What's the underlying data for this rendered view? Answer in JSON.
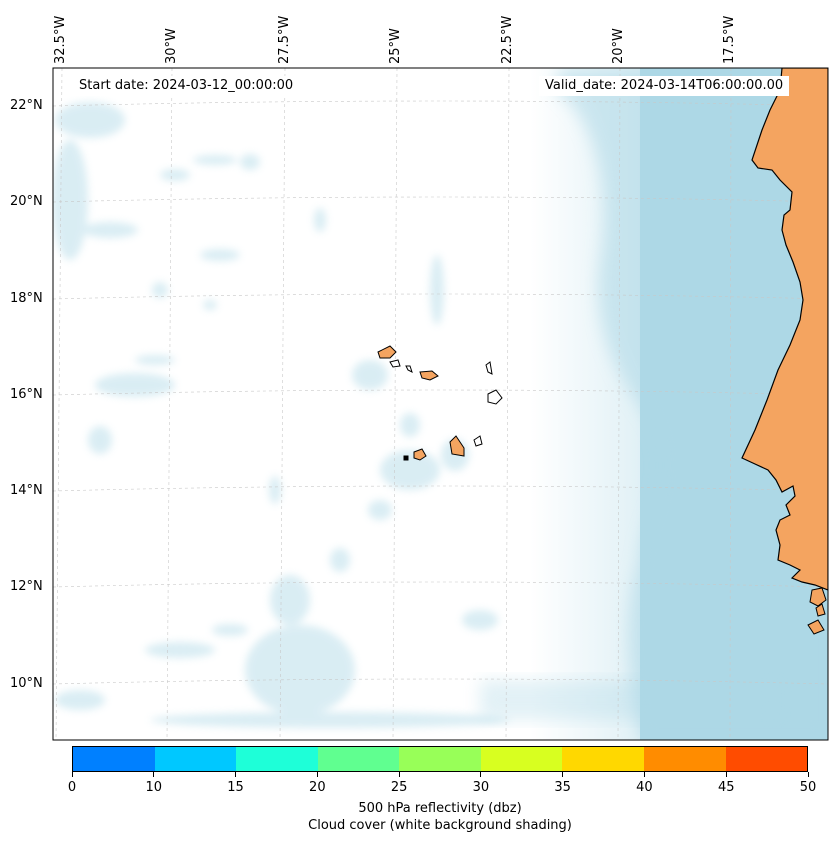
{
  "map": {
    "start_date": "Start date: 2024-03-12_00:00:00",
    "valid_date": "Valid_date: 2024-03-14T06:00:00.00",
    "lon_labels": [
      "32.5°W",
      "30°W",
      "27.5°W",
      "25°W",
      "22.5°W",
      "20°W",
      "17.5°W"
    ],
    "lat_labels": [
      "22°N",
      "20°N",
      "18°N",
      "16°N",
      "14°N",
      "12°N",
      "10°N"
    ],
    "land_color": "#f4a460",
    "cloud_color": "#add8e6",
    "ocean_color": "#ffffff"
  },
  "colorbar": {
    "ticks": [
      "0",
      "10",
      "15",
      "20",
      "25",
      "30",
      "35",
      "40",
      "45",
      "50"
    ],
    "colors": [
      "#0080ff",
      "#00c8ff",
      "#1effd8",
      "#60ff90",
      "#98ff58",
      "#d8ff20",
      "#ffd800",
      "#ff8c00",
      "#ff4c00"
    ],
    "title_line1": "500 hPa reflectivity (dbz)",
    "title_line2": "Cloud cover (white background shading)"
  }
}
